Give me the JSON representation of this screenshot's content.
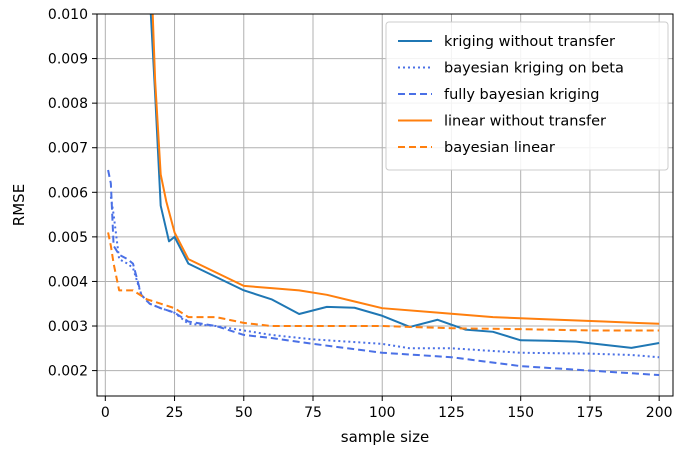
{
  "chart_data": {
    "type": "line",
    "xlabel": "sample size",
    "ylabel": "RMSE",
    "xlim": [
      -3,
      205
    ],
    "ylim": [
      0.00143,
      0.01
    ],
    "xticks": [
      0,
      25,
      50,
      75,
      100,
      125,
      150,
      175,
      200
    ],
    "yticks": [
      0.002,
      0.003,
      0.004,
      0.005,
      0.006,
      0.007,
      0.008,
      0.009,
      0.01
    ],
    "ytick_labels": [
      "0.002",
      "0.003",
      "0.004",
      "0.005",
      "0.006",
      "0.007",
      "0.008",
      "0.009",
      "0.010"
    ],
    "grid": true,
    "legend_position": "top-right",
    "series": [
      {
        "name": "kriging without transfer",
        "color": "#1f77b4",
        "dash": "solid",
        "x": [
          16,
          18,
          20,
          23,
          25,
          30,
          40,
          50,
          60,
          70,
          80,
          90,
          100,
          110,
          120,
          130,
          140,
          150,
          160,
          170,
          180,
          190,
          200
        ],
        "y": [
          0.0105,
          0.0082,
          0.0057,
          0.0049,
          0.005,
          0.0044,
          0.0041,
          0.0038,
          0.0036,
          0.00327,
          0.00343,
          0.00341,
          0.00323,
          0.00298,
          0.00314,
          0.00292,
          0.00287,
          0.00268,
          0.00267,
          0.00265,
          0.00258,
          0.00251,
          0.00262
        ]
      },
      {
        "name": "bayesian kriging on beta",
        "color": "#4a70e6",
        "dash": "dotted",
        "x": [
          2,
          3,
          5,
          8,
          10,
          13,
          16,
          20,
          25,
          30,
          40,
          50,
          60,
          75,
          100,
          110,
          125,
          150,
          175,
          190,
          200
        ],
        "y": [
          0.0059,
          0.0055,
          0.0045,
          0.0044,
          0.0043,
          0.0037,
          0.0035,
          0.0034,
          0.0033,
          0.00305,
          0.003,
          0.0029,
          0.0028,
          0.0027,
          0.0026,
          0.0025,
          0.0025,
          0.0024,
          0.00238,
          0.00235,
          0.0023
        ]
      },
      {
        "name": "fully bayesian kriging",
        "color": "#4a70e6",
        "dash": "dashed",
        "x": [
          1,
          2,
          3,
          5,
          8,
          10,
          13,
          16,
          20,
          25,
          30,
          40,
          50,
          60,
          75,
          100,
          125,
          150,
          175,
          200
        ],
        "y": [
          0.0065,
          0.0062,
          0.0048,
          0.0046,
          0.0045,
          0.0044,
          0.0037,
          0.0035,
          0.0034,
          0.0033,
          0.0031,
          0.003,
          0.0028,
          0.00273,
          0.0026,
          0.0024,
          0.0023,
          0.0021,
          0.002,
          0.0019
        ]
      },
      {
        "name": "linear without transfer",
        "color": "#ff7f0e",
        "dash": "solid",
        "x": [
          17,
          18,
          20,
          22,
          25,
          30,
          40,
          50,
          60,
          70,
          80,
          90,
          100,
          120,
          140,
          160,
          180,
          200
        ],
        "y": [
          0.0102,
          0.0085,
          0.0064,
          0.0058,
          0.0051,
          0.0045,
          0.0042,
          0.0039,
          0.00385,
          0.0038,
          0.0037,
          0.00355,
          0.0034,
          0.0033,
          0.0032,
          0.00315,
          0.0031,
          0.00305
        ]
      },
      {
        "name": "bayesian linear",
        "color": "#ff7f0e",
        "dash": "dashed",
        "x": [
          1,
          2,
          3,
          5,
          10,
          15,
          20,
          25,
          30,
          40,
          50,
          60,
          75,
          100,
          125,
          150,
          175,
          200
        ],
        "y": [
          0.0051,
          0.0048,
          0.0044,
          0.0038,
          0.0038,
          0.0036,
          0.0035,
          0.0034,
          0.0032,
          0.0032,
          0.00307,
          0.003,
          0.003,
          0.003,
          0.00295,
          0.00293,
          0.0029,
          0.0029
        ]
      }
    ]
  }
}
